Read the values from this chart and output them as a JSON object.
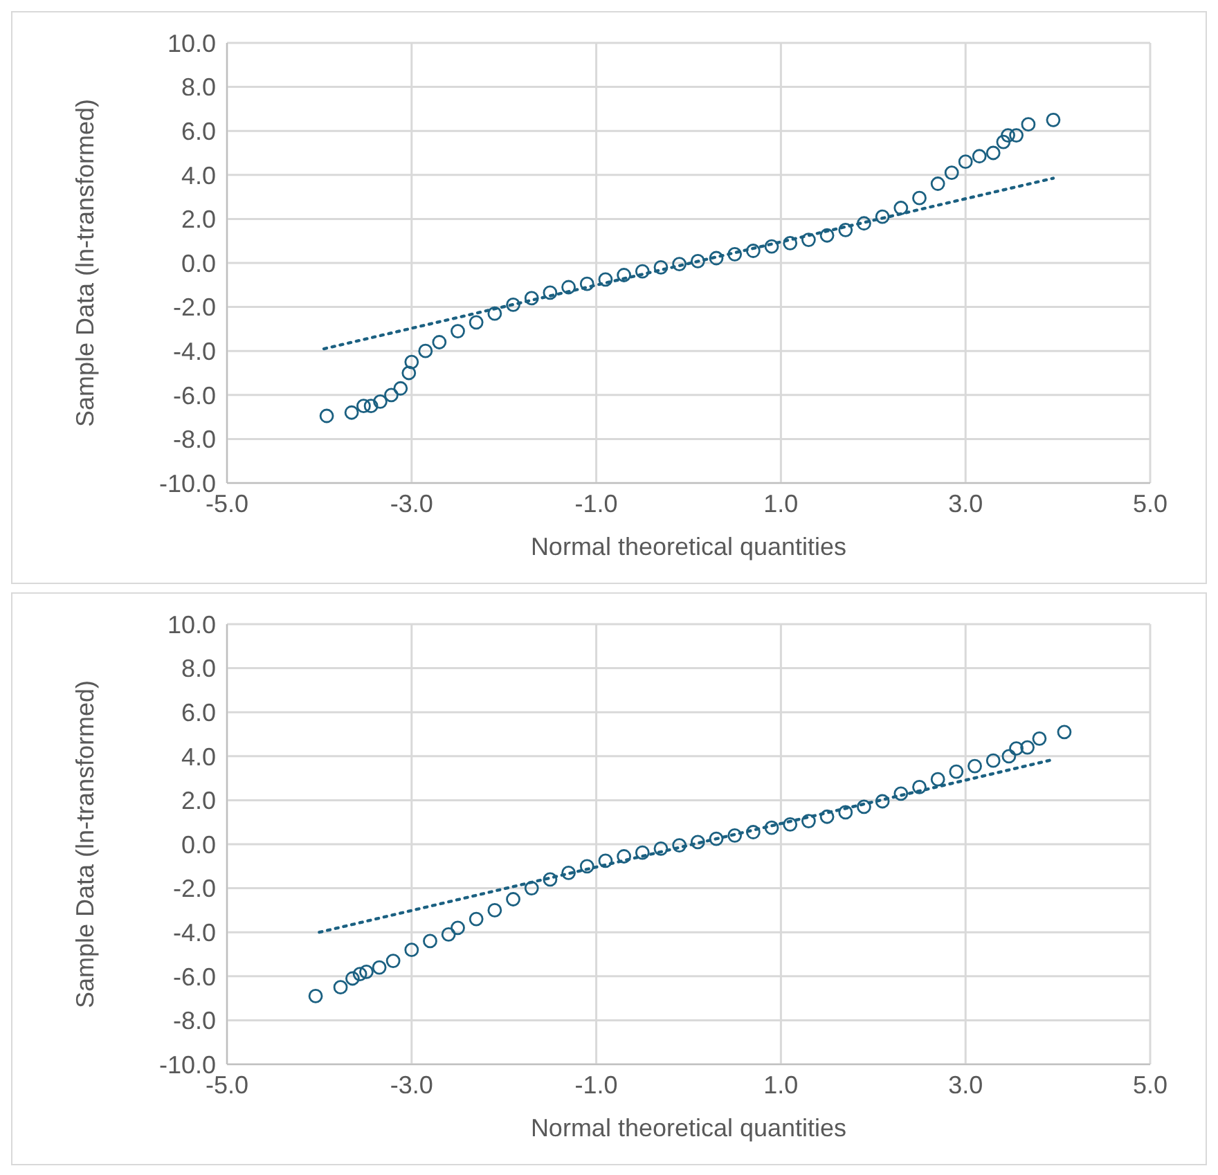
{
  "chart_data": [
    {
      "type": "scatter",
      "xlabel": "Normal theoretical quantities",
      "ylabel": "Sample Data (ln-transformed)",
      "xlim": [
        -5,
        5
      ],
      "ylim": [
        -10,
        10
      ],
      "xticks": [
        {
          "value": -5,
          "label": "-5.0"
        },
        {
          "value": -3,
          "label": "-3.0"
        },
        {
          "value": -1,
          "label": "-1.0"
        },
        {
          "value": 1,
          "label": "1.0"
        },
        {
          "value": 3,
          "label": "3.0"
        },
        {
          "value": 5,
          "label": "5.0"
        }
      ],
      "yticks": [
        {
          "value": -10,
          "label": "-10.0"
        },
        {
          "value": -8,
          "label": "-8.0"
        },
        {
          "value": -6,
          "label": "-6.0"
        },
        {
          "value": -4,
          "label": "-4.0"
        },
        {
          "value": -2,
          "label": "-2.0"
        },
        {
          "value": 0,
          "label": "0.0"
        },
        {
          "value": 2,
          "label": "2.0"
        },
        {
          "value": 4,
          "label": "4.0"
        },
        {
          "value": 6,
          "label": "6.0"
        },
        {
          "value": 8,
          "label": "8.0"
        },
        {
          "value": 10,
          "label": "10.0"
        }
      ],
      "grid": true,
      "series": [
        {
          "color": "#1b6081",
          "marker": "circle",
          "x": [
            -3.92,
            -3.65,
            -3.52,
            -3.44,
            -3.34,
            -3.22,
            -3.12,
            -3.03,
            -3.0,
            -2.85,
            -2.7,
            -2.5,
            -2.3,
            -2.1,
            -1.9,
            -1.7,
            -1.5,
            -1.3,
            -1.1,
            -0.9,
            -0.7,
            -0.5,
            -0.3,
            -0.1,
            0.1,
            0.3,
            0.5,
            0.7,
            0.9,
            1.1,
            1.3,
            1.5,
            1.7,
            1.9,
            2.1,
            2.3,
            2.5,
            2.7,
            2.85,
            3.0,
            3.15,
            3.3,
            3.41,
            3.46,
            3.55,
            3.68,
            3.95
          ],
          "values": [
            -6.95,
            -6.8,
            -6.5,
            -6.5,
            -6.3,
            -6.0,
            -5.7,
            -5.0,
            -4.5,
            -4.0,
            -3.6,
            -3.1,
            -2.7,
            -2.3,
            -1.9,
            -1.6,
            -1.35,
            -1.1,
            -0.95,
            -0.75,
            -0.55,
            -0.38,
            -0.2,
            -0.05,
            0.08,
            0.22,
            0.4,
            0.55,
            0.75,
            0.9,
            1.05,
            1.25,
            1.5,
            1.8,
            2.1,
            2.5,
            2.95,
            3.6,
            4.1,
            4.6,
            4.85,
            5.0,
            5.5,
            5.8,
            5.8,
            6.3,
            6.5
          ]
        },
        {
          "type": "line",
          "color": "#1b6081",
          "marker": "none",
          "line_style": "dotted",
          "x": [
            -3.95,
            3.95
          ],
          "values": [
            -3.9,
            3.85
          ]
        }
      ]
    },
    {
      "type": "scatter",
      "xlabel": "Normal theoretical quantities",
      "ylabel": "Sample Data (ln-transformed)",
      "xlim": [
        -5,
        5
      ],
      "ylim": [
        -10,
        10
      ],
      "xticks": [
        {
          "value": -5,
          "label": "-5.0"
        },
        {
          "value": -3,
          "label": "-3.0"
        },
        {
          "value": -1,
          "label": "-1.0"
        },
        {
          "value": 1,
          "label": "1.0"
        },
        {
          "value": 3,
          "label": "3.0"
        },
        {
          "value": 5,
          "label": "5.0"
        }
      ],
      "yticks": [
        {
          "value": -10,
          "label": "-10.0"
        },
        {
          "value": -8,
          "label": "-8.0"
        },
        {
          "value": -6,
          "label": "-6.0"
        },
        {
          "value": -4,
          "label": "-4.0"
        },
        {
          "value": -2,
          "label": "-2.0"
        },
        {
          "value": 0,
          "label": "0.0"
        },
        {
          "value": 2,
          "label": "2.0"
        },
        {
          "value": 4,
          "label": "4.0"
        },
        {
          "value": 6,
          "label": "6.0"
        },
        {
          "value": 8,
          "label": "8.0"
        },
        {
          "value": 10,
          "label": "10.0"
        }
      ],
      "grid": true,
      "series": [
        {
          "color": "#1b6081",
          "marker": "circle",
          "x": [
            -4.04,
            -3.77,
            -3.64,
            -3.56,
            -3.49,
            -3.35,
            -3.2,
            -3.0,
            -2.8,
            -2.6,
            -2.5,
            -2.3,
            -2.1,
            -1.9,
            -1.7,
            -1.5,
            -1.3,
            -1.1,
            -0.9,
            -0.7,
            -0.5,
            -0.3,
            -0.1,
            0.1,
            0.3,
            0.5,
            0.7,
            0.9,
            1.1,
            1.3,
            1.5,
            1.7,
            1.9,
            2.1,
            2.3,
            2.5,
            2.7,
            2.9,
            3.1,
            3.3,
            3.47,
            3.55,
            3.67,
            3.8,
            4.07
          ],
          "values": [
            -6.9,
            -6.5,
            -6.1,
            -5.9,
            -5.8,
            -5.6,
            -5.3,
            -4.8,
            -4.4,
            -4.1,
            -3.8,
            -3.4,
            -3.0,
            -2.5,
            -2.0,
            -1.6,
            -1.3,
            -1.0,
            -0.75,
            -0.55,
            -0.38,
            -0.2,
            -0.05,
            0.1,
            0.25,
            0.4,
            0.55,
            0.75,
            0.9,
            1.05,
            1.25,
            1.45,
            1.7,
            1.95,
            2.3,
            2.6,
            2.95,
            3.3,
            3.55,
            3.8,
            4.0,
            4.35,
            4.4,
            4.8,
            5.1
          ]
        },
        {
          "type": "line",
          "color": "#1b6081",
          "marker": "none",
          "line_style": "dotted",
          "x": [
            -4.0,
            3.95
          ],
          "values": [
            -4.0,
            3.85
          ]
        }
      ]
    }
  ]
}
